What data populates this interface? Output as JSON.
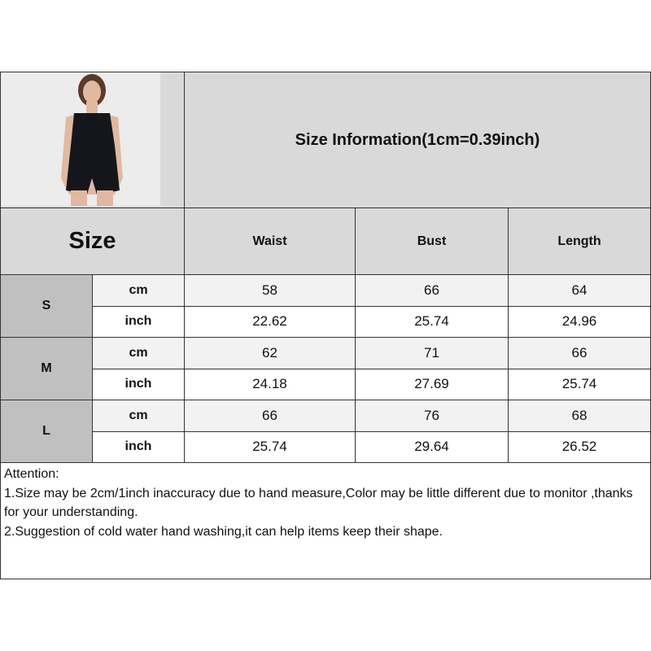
{
  "title": "Size Information(1cm=0.39inch)",
  "size_header": "Size",
  "columns": [
    "Waist",
    "Bust",
    "Length"
  ],
  "rows": [
    {
      "size": "S",
      "cm": {
        "unit": "cm",
        "values": [
          "58",
          "66",
          "64"
        ]
      },
      "inch": {
        "unit": "inch",
        "values": [
          "22.62",
          "25.74",
          "24.96"
        ]
      }
    },
    {
      "size": "M",
      "cm": {
        "unit": "cm",
        "values": [
          "62",
          "71",
          "66"
        ]
      },
      "inch": {
        "unit": "inch",
        "values": [
          "24.18",
          "27.69",
          "25.74"
        ]
      }
    },
    {
      "size": "L",
      "cm": {
        "unit": "cm",
        "values": [
          "66",
          "76",
          "68"
        ]
      },
      "inch": {
        "unit": "inch",
        "values": [
          "25.74",
          "29.64",
          "26.52"
        ]
      }
    }
  ],
  "attention": {
    "heading": "Attention:",
    "notes": [
      "1.Size may be 2cm/1inch inaccuracy due to hand measure,Color may be little different due to monitor ,thanks for your understanding.",
      "2.Suggestion of cold water hand washing,it can help items keep their shape."
    ]
  },
  "product_image": "model-in-black-sleeveless-romper"
}
